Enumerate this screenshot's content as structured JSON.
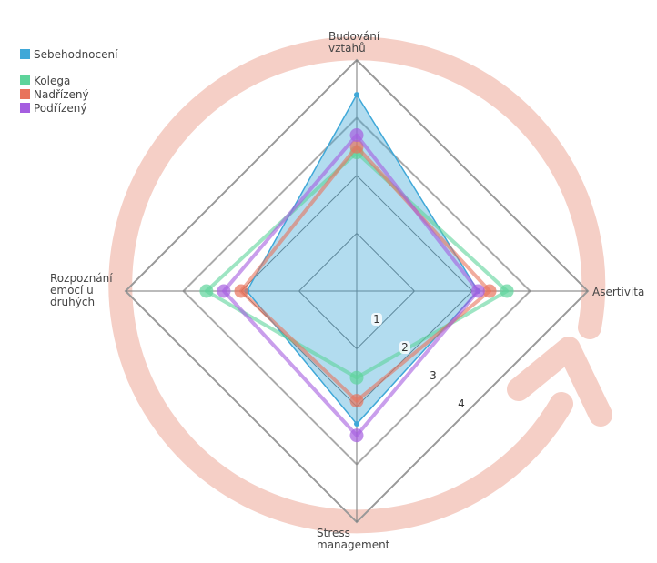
{
  "chart_data": {
    "type": "radar",
    "axes": [
      [
        "Budování",
        "vztahů"
      ],
      [
        "Asertivita"
      ],
      [
        "Stress",
        "management"
      ],
      [
        "Rozpoznání",
        "emocí u",
        "druhých"
      ]
    ],
    "ticks": [
      "1",
      "2",
      "3",
      "4"
    ],
    "range": [
      0,
      4
    ],
    "legend_placement": "top-left",
    "series": [
      {
        "name": "Sebehodnocení",
        "values": [
          3.4,
          2.1,
          2.3,
          1.9
        ],
        "color": "#3fa8d8",
        "style": "area"
      },
      {
        "name": "Kolega",
        "values": [
          2.4,
          2.6,
          1.5,
          2.6
        ],
        "color": "#5ed49b",
        "style": "line"
      },
      {
        "name": "Nadřízený",
        "values": [
          2.5,
          2.3,
          1.9,
          2.0
        ],
        "color": "#e8735c",
        "style": "line"
      },
      {
        "name": "Podřízený",
        "values": [
          2.7,
          2.1,
          2.5,
          2.3
        ],
        "color": "#a55ee0",
        "style": "line"
      }
    ],
    "decoration_color": "#f5cfc6"
  }
}
